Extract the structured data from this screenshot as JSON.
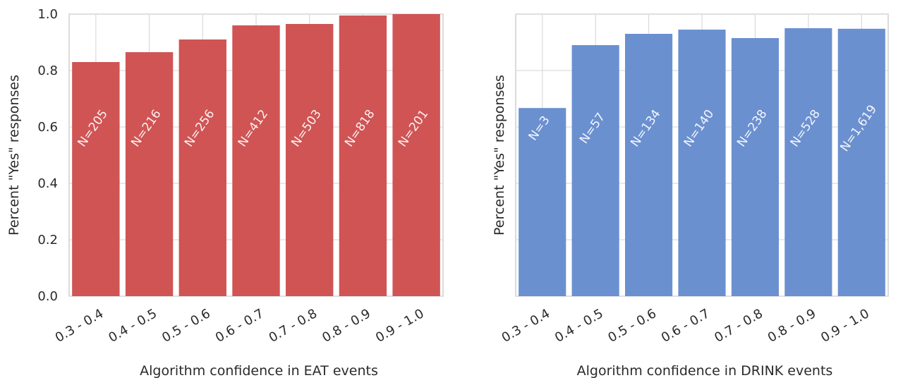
{
  "chart_data": [
    {
      "type": "bar",
      "xlabel": "Algorithm confidence in EAT events",
      "ylabel": "Percent \"Yes\" responses",
      "categories": [
        "0.3 - 0.4",
        "0.4 - 0.5",
        "0.5 - 0.6",
        "0.6 - 0.7",
        "0.7 - 0.8",
        "0.8 - 0.9",
        "0.9 - 1.0"
      ],
      "values": [
        0.83,
        0.865,
        0.91,
        0.96,
        0.965,
        0.995,
        1.0
      ],
      "bar_labels": [
        "N=205",
        "N=216",
        "N=256",
        "N=412",
        "N=503",
        "N=818",
        "N=201"
      ],
      "ylim": [
        0,
        1.0
      ],
      "yticks": [
        "0.0",
        "0.2",
        "0.4",
        "0.6",
        "0.8",
        "1.0"
      ],
      "grid": true,
      "color": "#d05454"
    },
    {
      "type": "bar",
      "xlabel": "Algorithm confidence in DRINK events",
      "ylabel": "Percent \"Yes\" responses",
      "categories": [
        "0.3 - 0.4",
        "0.4 - 0.5",
        "0.5 - 0.6",
        "0.6 - 0.7",
        "0.7 - 0.8",
        "0.8 - 0.9",
        "0.9 - 1.0"
      ],
      "values": [
        0.667,
        0.89,
        0.93,
        0.945,
        0.915,
        0.95,
        0.948
      ],
      "bar_labels": [
        "N=3",
        "N=57",
        "N=134",
        "N=140",
        "N=238",
        "N=528",
        "N=1,619"
      ],
      "ylim": [
        0,
        1.0
      ],
      "yticks": [
        "",
        "",
        "",
        "",
        "",
        ""
      ],
      "grid": true,
      "color": "#6a90d0"
    }
  ]
}
